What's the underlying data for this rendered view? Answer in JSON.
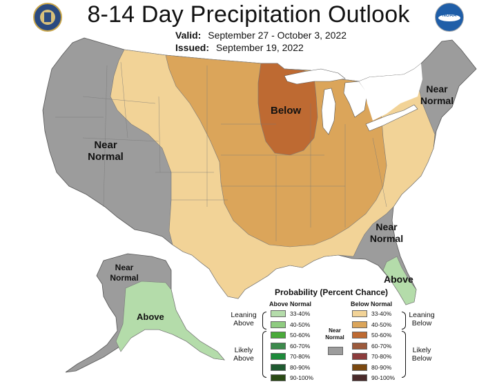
{
  "header": {
    "title": "8-14 Day Precipitation Outlook",
    "valid_label": "Valid:",
    "valid_range": "September 27 - October 3, 2022",
    "issued_label": "Issued:",
    "issued_date": "September 19, 2022",
    "left_logo_icon": "doc-seal-icon",
    "right_logo_icon": "noaa-logo-icon",
    "noaa_text": "NOAA"
  },
  "map": {
    "labels": {
      "near_normal_west": [
        "Near",
        "Normal"
      ],
      "below": "Below",
      "near_normal_northeast": [
        "Near",
        "Normal"
      ],
      "near_normal_southeast": [
        "Near",
        "Normal"
      ],
      "above_florida": "Above",
      "near_normal_alaska": [
        "Near",
        "Normal"
      ],
      "above_alaska": "Above"
    },
    "colors": {
      "near_normal": "#9c9c9c",
      "below_33_40": "#f2d397",
      "below_40_50": "#dba55a",
      "below_50_60": "#be6a32",
      "above_33_40": "#b4dcaa",
      "ocean": "#ffffff",
      "border": "#666666"
    }
  },
  "legend": {
    "title": "Probability (Percent Chance)",
    "above_header": "Above Normal",
    "below_header": "Below Normal",
    "near_normal_label": "Near Normal",
    "leaning_above": "Leaning Above",
    "likely_above": "Likely Above",
    "leaning_below": "Leaning Below",
    "likely_below": "Likely Below",
    "above": [
      {
        "range": "33-40%",
        "color": "#b4dcaa"
      },
      {
        "range": "40-50%",
        "color": "#8fcc80"
      },
      {
        "range": "50-60%",
        "color": "#4aaa3a"
      },
      {
        "range": "60-70%",
        "color": "#3c8a4c"
      },
      {
        "range": "70-80%",
        "color": "#1d8a3a"
      },
      {
        "range": "80-90%",
        "color": "#1f5a30"
      },
      {
        "range": "90-100%",
        "color": "#2a4a14"
      }
    ],
    "below": [
      {
        "range": "33-40%",
        "color": "#f2d397"
      },
      {
        "range": "40-50%",
        "color": "#dba55a"
      },
      {
        "range": "50-60%",
        "color": "#be6a32"
      },
      {
        "range": "60-70%",
        "color": "#9c5a3c"
      },
      {
        "range": "70-80%",
        "color": "#8c3c3c"
      },
      {
        "range": "80-90%",
        "color": "#7a4810"
      },
      {
        "range": "90-100%",
        "color": "#4a2a2a"
      }
    ],
    "near_normal_color": "#9c9c9c"
  }
}
